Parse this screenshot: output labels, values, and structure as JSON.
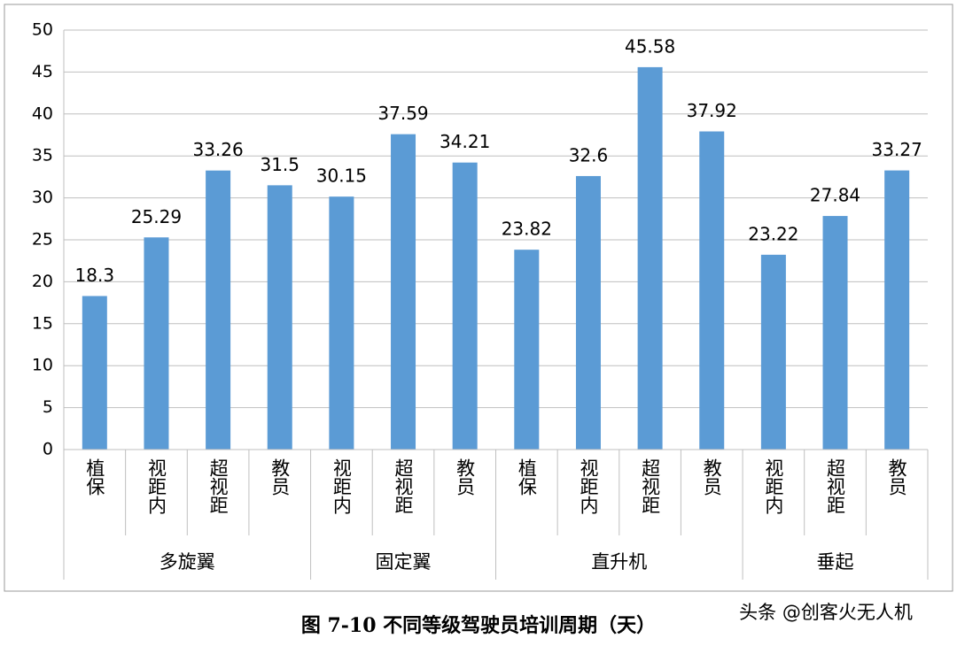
{
  "chart_data": {
    "type": "bar",
    "caption": "图 7-10 不同等级驾驶员培训周期（天）",
    "watermark": "头条 @创客火无人机",
    "color": "#5b9bd5",
    "ylim": [
      0,
      50
    ],
    "yticks": [
      0,
      5,
      10,
      15,
      20,
      25,
      30,
      35,
      40,
      45,
      50
    ],
    "grid": true,
    "groups": [
      {
        "name": "多旋翼",
        "categories": [
          "植保",
          "视距内",
          "超视距",
          "教员"
        ],
        "values": [
          18.3,
          25.29,
          33.26,
          31.5
        ]
      },
      {
        "name": "固定翼",
        "categories": [
          "视距内",
          "超视距",
          "教员"
        ],
        "values": [
          30.15,
          37.59,
          34.21
        ]
      },
      {
        "name": "直升机",
        "categories": [
          "植保",
          "视距内",
          "超视距",
          "教员"
        ],
        "values": [
          23.82,
          32.6,
          45.58,
          37.92
        ]
      },
      {
        "name": "垂起",
        "categories": [
          "视距内",
          "超视距",
          "教员"
        ],
        "values": [
          23.22,
          27.84,
          33.27
        ]
      }
    ]
  }
}
